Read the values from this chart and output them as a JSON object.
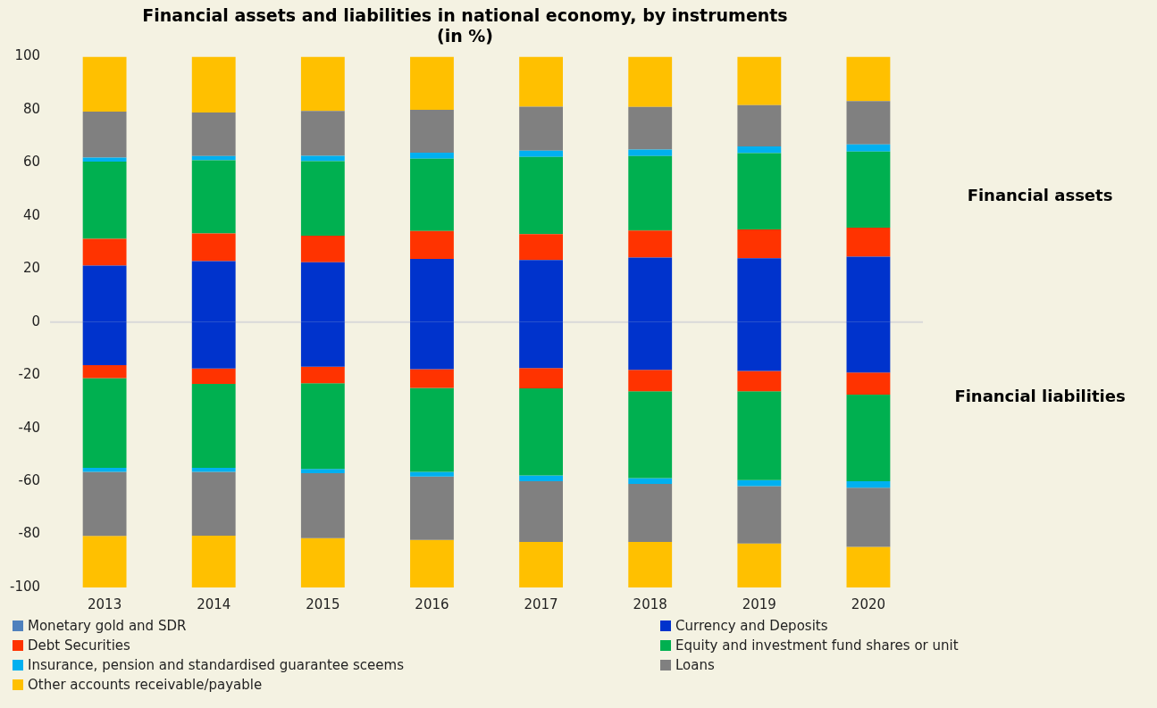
{
  "chart_data": {
    "type": "bar",
    "title": "Financial assets and liabilities in national economy, by instruments\n(in %)",
    "categories": [
      "2013",
      "2014",
      "2015",
      "2016",
      "2017",
      "2018",
      "2019",
      "2020"
    ],
    "stacked": true,
    "grid": false,
    "legend": "bottom",
    "ylim": [
      -100,
      100
    ],
    "yticks": [
      -100,
      -80,
      -60,
      -40,
      -20,
      0,
      20,
      40,
      60,
      80,
      100
    ],
    "ref_lines": [
      {
        "axis": "y",
        "value": 0,
        "color": "#d9d9d9"
      }
    ],
    "annotations": [
      "Financial assets",
      "Financial liabilities"
    ],
    "series": [
      {
        "name": "Monetary gold and SDR",
        "color": "#4f81bd",
        "values": [
          null,
          null,
          null,
          null,
          null,
          null,
          null,
          null
        ]
      },
      {
        "name": "Currency and Deposits",
        "color": "#0033cc",
        "values": [
          21.3,
          23.0,
          22.6,
          23.8,
          23.4,
          24.3,
          24.1,
          24.7
        ]
      },
      {
        "name": "Debt Securities",
        "color": "#ff3300",
        "values": [
          10.1,
          10.4,
          10.0,
          10.5,
          9.8,
          10.2,
          10.8,
          10.9
        ]
      },
      {
        "name": "Equity and investment fund shares or unit",
        "color": "#00b050",
        "values": [
          29.1,
          27.6,
          28.1,
          27.3,
          29.1,
          28.1,
          28.8,
          28.7
        ]
      },
      {
        "name": "Insurance, pension and standardised guarantee sceems",
        "color": "#00b0f0",
        "values": [
          1.5,
          1.6,
          2.0,
          2.3,
          2.3,
          2.4,
          2.5,
          2.7
        ]
      },
      {
        "name": "Loans",
        "color": "#808080",
        "values": [
          17.3,
          16.4,
          16.9,
          16.1,
          16.6,
          16.1,
          15.6,
          16.3
        ]
      },
      {
        "name": "Other accounts receivable/payable",
        "color": "#ffc000",
        "values": [
          20.7,
          21.0,
          20.4,
          20.0,
          18.8,
          18.9,
          18.2,
          16.7
        ]
      },
      {
        "color": "#0033cc",
        "values": [
          -16.2,
          -17.5,
          -16.8,
          -17.7,
          -17.3,
          -18.0,
          -18.4,
          -19.0
        ]
      },
      {
        "color": "#ff3300",
        "values": [
          -4.9,
          -5.8,
          -6.2,
          -7.1,
          -7.7,
          -8.1,
          -7.7,
          -8.3
        ]
      },
      {
        "color": "#00b050",
        "values": [
          -33.8,
          -31.6,
          -32.3,
          -31.6,
          -32.8,
          -32.7,
          -33.4,
          -32.7
        ]
      },
      {
        "color": "#00b0f0",
        "values": [
          -1.5,
          -1.5,
          -1.6,
          -1.8,
          -2.2,
          -2.2,
          -2.3,
          -2.4
        ]
      },
      {
        "color": "#808080",
        "values": [
          -24.2,
          -24.1,
          -24.5,
          -23.9,
          -22.8,
          -21.8,
          -21.6,
          -22.3
        ]
      },
      {
        "color": "#ffc000",
        "values": [
          -19.4,
          -19.5,
          -18.6,
          -17.9,
          -17.2,
          -17.2,
          -16.6,
          -15.3
        ]
      }
    ]
  }
}
